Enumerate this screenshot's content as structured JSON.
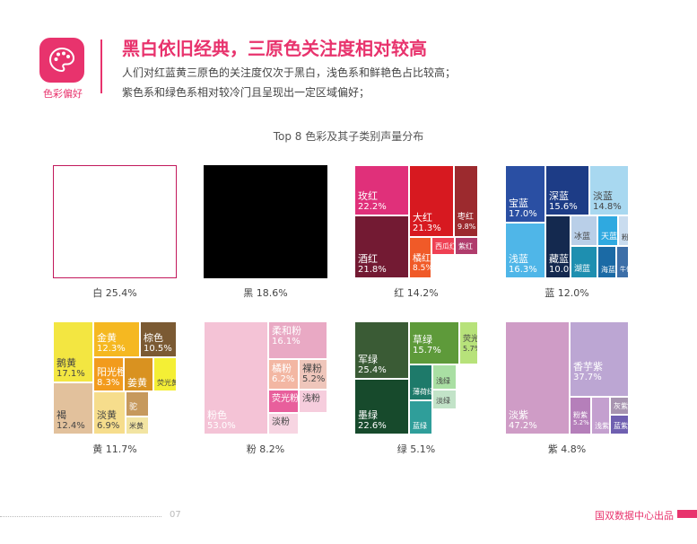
{
  "header": {
    "badge_label": "色彩偏好",
    "badge_icon": "palette-icon",
    "title": "黑白依旧经典，三原色关注度相对较高",
    "sub1": "人们对红蓝黄三原色的关注度仅次于黑白，浅色系和鲜艳色占比较高；",
    "sub2": "紫色系和绿色系相对较冷门且呈现出一定区域偏好；"
  },
  "footer": {
    "page": "07",
    "brand": "国双数据中心出品"
  },
  "chart_data": {
    "type": "treemap",
    "title": "Top 8 色彩及其子类别声量分布",
    "panels": [
      {
        "name": "白",
        "share": "25.4%",
        "cells": []
      },
      {
        "name": "黑",
        "share": "18.6%",
        "cells": []
      },
      {
        "name": "红",
        "share": "14.2%",
        "cells": [
          {
            "name": "玫红",
            "value": "22.2%",
            "color": "#e0307a"
          },
          {
            "name": "大红",
            "value": "21.3%",
            "color": "#d71920"
          },
          {
            "name": "枣红",
            "value": "9.8%",
            "color": "#9c2a2e"
          },
          {
            "name": "酒红",
            "value": "21.8%",
            "color": "#731a33"
          },
          {
            "name": "橘红",
            "value": "8.5%",
            "color": "#f05a28"
          },
          {
            "name": "西瓜红",
            "value": "",
            "color": "#ef4053"
          },
          {
            "name": "紫红",
            "value": "",
            "color": "#b03c6c"
          }
        ]
      },
      {
        "name": "蓝",
        "share": "12.0%",
        "cells": [
          {
            "name": "宝蓝",
            "value": "17.0%",
            "color": "#2a4fa3"
          },
          {
            "name": "深蓝",
            "value": "15.6%",
            "color": "#1d3c86"
          },
          {
            "name": "淡蓝",
            "value": "14.8%",
            "color": "#a8d8f0"
          },
          {
            "name": "浅蓝",
            "value": "16.3%",
            "color": "#4fb6e8"
          },
          {
            "name": "藏蓝",
            "value": "10.0%",
            "color": "#14294f"
          },
          {
            "name": "冰蓝",
            "value": "",
            "color": "#b9cfe8"
          },
          {
            "name": "天蓝",
            "value": "",
            "color": "#2fa9e0"
          },
          {
            "name": "粉蓝",
            "value": "",
            "color": "#c9dcef"
          },
          {
            "name": "湖蓝",
            "value": "",
            "color": "#1e8fb0"
          },
          {
            "name": "海蓝",
            "value": "",
            "color": "#1b6aa5"
          },
          {
            "name": "牛仔蓝",
            "value": "",
            "color": "#3d6fa8"
          }
        ]
      },
      {
        "name": "黄",
        "share": "11.7%",
        "cells": [
          {
            "name": "鹅黄",
            "value": "17.1%",
            "color": "#f3e641"
          },
          {
            "name": "金黄",
            "value": "12.3%",
            "color": "#f5b821"
          },
          {
            "name": "棕色",
            "value": "10.5%",
            "color": "#7b5a33"
          },
          {
            "name": "阳光橙",
            "value": "8.3%",
            "color": "#f29b1d"
          },
          {
            "name": "姜黄",
            "value": "",
            "color": "#d99220"
          },
          {
            "name": "荧光黄",
            "value": "",
            "color": "#f4ef35"
          },
          {
            "name": "褐",
            "value": "12.4%",
            "color": "#e2c19c"
          },
          {
            "name": "淡黄",
            "value": "6.9%",
            "color": "#f6dd8c"
          },
          {
            "name": "驼",
            "value": "",
            "color": "#c6995d"
          },
          {
            "name": "米黄",
            "value": "",
            "color": "#f2e4a2"
          }
        ]
      },
      {
        "name": "粉",
        "share": "8.2%",
        "cells": [
          {
            "name": "粉色",
            "value": "53.0%",
            "color": "#f4c3d6"
          },
          {
            "name": "柔和粉",
            "value": "16.1%",
            "color": "#e9a9c4"
          },
          {
            "name": "橘粉",
            "value": "6.2%",
            "color": "#f3b7a3"
          },
          {
            "name": "裸粉",
            "value": "5.2%",
            "color": "#efc6bb"
          },
          {
            "name": "荧光粉",
            "value": "",
            "color": "#e85f9c"
          },
          {
            "name": "浅粉",
            "value": "",
            "color": "#f6cddd"
          },
          {
            "name": "淡粉",
            "value": "",
            "color": "#f7d5e2"
          }
        ]
      },
      {
        "name": "绿",
        "share": "5.1%",
        "cells": [
          {
            "name": "军绿",
            "value": "25.4%",
            "color": "#3a5b35"
          },
          {
            "name": "草绿",
            "value": "15.7%",
            "color": "#5e9a3a"
          },
          {
            "name": "荧光绿",
            "value": "5.7%",
            "color": "#b7e27a"
          },
          {
            "name": "墨绿",
            "value": "22.6%",
            "color": "#174a2c"
          },
          {
            "name": "薄荷绿",
            "value": "",
            "color": "#1e7a6a"
          },
          {
            "name": "浅绿",
            "value": "",
            "color": "#a9dfa3"
          },
          {
            "name": "淡绿",
            "value": "",
            "color": "#c2e3c8"
          },
          {
            "name": "蓝绿",
            "value": "",
            "color": "#2f9e9a"
          }
        ]
      },
      {
        "name": "紫",
        "share": "4.8%",
        "cells": [
          {
            "name": "淡紫",
            "value": "47.2%",
            "color": "#cf9cc6"
          },
          {
            "name": "香芋紫",
            "value": "37.7%",
            "color": "#bca6d3"
          },
          {
            "name": "粉紫",
            "value": "5.2%",
            "color": "#b57fba"
          },
          {
            "name": "浅紫",
            "value": "",
            "color": "#c4a0cf"
          },
          {
            "name": "灰紫",
            "value": "",
            "color": "#a794b0"
          },
          {
            "name": "蓝紫",
            "value": "",
            "color": "#6f5fb0"
          }
        ]
      }
    ]
  }
}
